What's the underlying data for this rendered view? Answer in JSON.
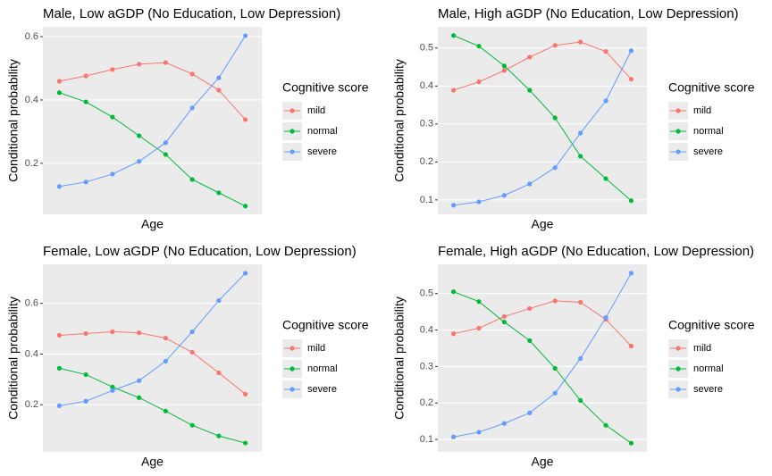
{
  "chart_data": [
    {
      "type": "line",
      "title": "Male, Low aGDP (No Education, Low Depression)",
      "xlabel": "Age",
      "ylabel": "Conditional probability",
      "legend_title": "Cognitive score",
      "legend": "right",
      "grid": true,
      "categories": [
        null,
        null,
        null,
        null,
        null,
        null,
        null,
        null
      ],
      "ylim": [
        0.039,
        0.631
      ],
      "yticks": [
        0.2,
        0.4,
        0.6
      ],
      "series": [
        {
          "name": "mild",
          "color": "#F8766D",
          "values": [
            0.459,
            0.476,
            0.496,
            0.513,
            0.518,
            0.482,
            0.431,
            0.338
          ]
        },
        {
          "name": "normal",
          "color": "#00BA38",
          "values": [
            0.423,
            0.394,
            0.346,
            0.287,
            0.228,
            0.149,
            0.107,
            0.065
          ]
        },
        {
          "name": "severe",
          "color": "#619CFF",
          "values": [
            0.127,
            0.141,
            0.166,
            0.206,
            0.265,
            0.375,
            0.47,
            0.603
          ]
        }
      ]
    },
    {
      "type": "line",
      "title": "Male, High aGDP (No Education, Low Depression)",
      "xlabel": "Age",
      "ylabel": "Conditional probability",
      "legend_title": "Cognitive score",
      "legend": "right",
      "grid": true,
      "categories": [
        null,
        null,
        null,
        null,
        null,
        null,
        null,
        null
      ],
      "ylim": [
        0.062,
        0.556
      ],
      "yticks": [
        0.1,
        0.2,
        0.3,
        0.4,
        0.5
      ],
      "series": [
        {
          "name": "mild",
          "color": "#F8766D",
          "values": [
            0.389,
            0.411,
            0.441,
            0.476,
            0.507,
            0.516,
            0.491,
            0.418
          ]
        },
        {
          "name": "normal",
          "color": "#00BA38",
          "values": [
            0.533,
            0.505,
            0.453,
            0.389,
            0.316,
            0.215,
            0.156,
            0.098
          ]
        },
        {
          "name": "severe",
          "color": "#619CFF",
          "values": [
            0.086,
            0.095,
            0.112,
            0.142,
            0.185,
            0.276,
            0.361,
            0.493
          ]
        }
      ]
    },
    {
      "type": "line",
      "title": "Female, Low aGDP (No Education, Low Depression)",
      "xlabel": "Age",
      "ylabel": "Conditional probability",
      "legend_title": "Cognitive score",
      "legend": "right",
      "grid": true,
      "categories": [
        null,
        null,
        null,
        null,
        null,
        null,
        null,
        null
      ],
      "ylim": [
        0.014,
        0.754
      ],
      "yticks": [
        0.2,
        0.4,
        0.6
      ],
      "series": [
        {
          "name": "mild",
          "color": "#F8766D",
          "values": [
            0.474,
            0.481,
            0.488,
            0.484,
            0.463,
            0.407,
            0.326,
            0.242
          ]
        },
        {
          "name": "normal",
          "color": "#00BA38",
          "values": [
            0.344,
            0.319,
            0.27,
            0.228,
            0.175,
            0.119,
            0.077,
            0.049
          ]
        },
        {
          "name": "severe",
          "color": "#619CFF",
          "values": [
            0.196,
            0.214,
            0.256,
            0.295,
            0.372,
            0.488,
            0.611,
            0.719
          ]
        }
      ]
    },
    {
      "type": "line",
      "title": "Female, High aGDP (No Education, Low Depression)",
      "xlabel": "Age",
      "ylabel": "Conditional probability",
      "legend_title": "Cognitive score",
      "legend": "right",
      "grid": true,
      "categories": [
        null,
        null,
        null,
        null,
        null,
        null,
        null,
        null
      ],
      "ylim": [
        0.066,
        0.58
      ],
      "yticks": [
        0.1,
        0.2,
        0.3,
        0.4,
        0.5
      ],
      "series": [
        {
          "name": "mild",
          "color": "#F8766D",
          "values": [
            0.39,
            0.405,
            0.437,
            0.459,
            0.48,
            0.476,
            0.429,
            0.356
          ]
        },
        {
          "name": "normal",
          "color": "#00BA38",
          "values": [
            0.505,
            0.478,
            0.422,
            0.371,
            0.295,
            0.207,
            0.139,
            0.09
          ]
        },
        {
          "name": "severe",
          "color": "#619CFF",
          "values": [
            0.107,
            0.12,
            0.144,
            0.173,
            0.227,
            0.322,
            0.434,
            0.556
          ]
        }
      ]
    }
  ]
}
